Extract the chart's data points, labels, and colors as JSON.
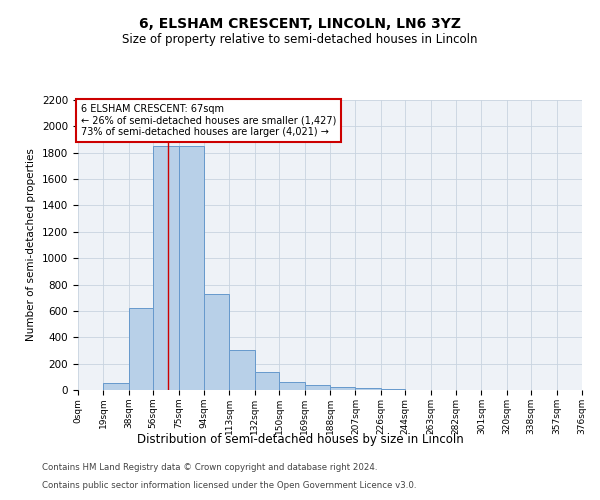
{
  "title": "6, ELSHAM CRESCENT, LINCOLN, LN6 3YZ",
  "subtitle": "Size of property relative to semi-detached houses in Lincoln",
  "xlabel": "Distribution of semi-detached houses by size in Lincoln",
  "ylabel": "Number of semi-detached properties",
  "bin_edges": [
    0,
    19,
    38,
    56,
    75,
    94,
    113,
    132,
    150,
    169,
    188,
    207,
    226,
    244,
    263,
    282,
    301,
    320,
    338,
    357,
    376
  ],
  "bar_heights": [
    0,
    50,
    625,
    1850,
    1850,
    725,
    300,
    140,
    60,
    35,
    20,
    15,
    5,
    0,
    0,
    0,
    0,
    0,
    0,
    0
  ],
  "bar_color": "#b8d0e8",
  "bar_edge_color": "#6699cc",
  "grid_color": "#c8d4e0",
  "property_size": 67,
  "annotation_text": "6 ELSHAM CRESCENT: 67sqm\n← 26% of semi-detached houses are smaller (1,427)\n73% of semi-detached houses are larger (4,021) →",
  "annotation_box_color": "#cc0000",
  "ylim": [
    0,
    2200
  ],
  "yticks": [
    0,
    200,
    400,
    600,
    800,
    1000,
    1200,
    1400,
    1600,
    1800,
    2000,
    2200
  ],
  "tick_labels": [
    "0sqm",
    "19sqm",
    "38sqm",
    "56sqm",
    "75sqm",
    "94sqm",
    "113sqm",
    "132sqm",
    "150sqm",
    "169sqm",
    "188sqm",
    "207sqm",
    "226sqm",
    "244sqm",
    "263sqm",
    "282sqm",
    "301sqm",
    "320sqm",
    "338sqm",
    "357sqm",
    "376sqm"
  ],
  "footer_line1": "Contains HM Land Registry data © Crown copyright and database right 2024.",
  "footer_line2": "Contains public sector information licensed under the Open Government Licence v3.0.",
  "background_color": "#ffffff",
  "plot_bg_color": "#eef2f7"
}
